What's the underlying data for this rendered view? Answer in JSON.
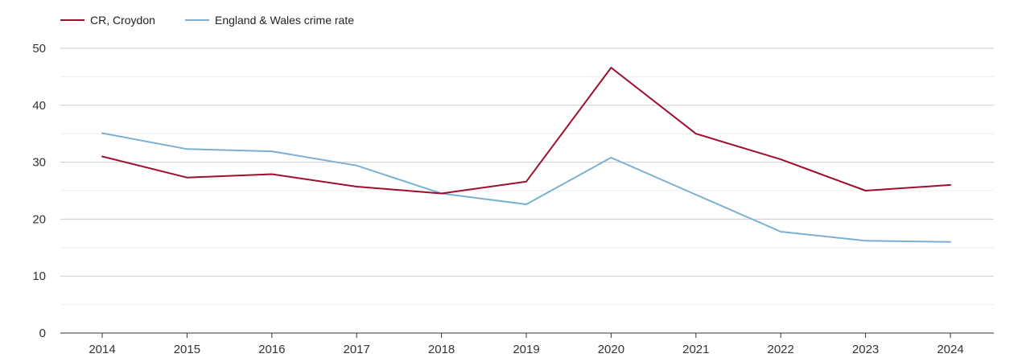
{
  "chart_data": {
    "type": "line",
    "title": "",
    "xlabel": "",
    "ylabel": "",
    "categories": [
      "2014",
      "2015",
      "2016",
      "2017",
      "2018",
      "2019",
      "2020",
      "2021",
      "2022",
      "2023",
      "2024"
    ],
    "ylim": [
      0,
      50
    ],
    "yticks": [
      0,
      10,
      20,
      30,
      40,
      50
    ],
    "grid": true,
    "legend_position": "top-left",
    "series": [
      {
        "name": "CR, Croydon",
        "color": "#9e0e2e",
        "values": [
          31.0,
          27.3,
          27.9,
          25.7,
          24.5,
          26.6,
          46.6,
          35.0,
          30.5,
          25.0,
          26.0
        ]
      },
      {
        "name": "England & Wales crime rate",
        "color": "#7ab0d4",
        "values": [
          35.1,
          32.3,
          31.9,
          29.4,
          24.5,
          22.6,
          30.8,
          24.3,
          17.8,
          16.2,
          16.0
        ]
      }
    ]
  }
}
